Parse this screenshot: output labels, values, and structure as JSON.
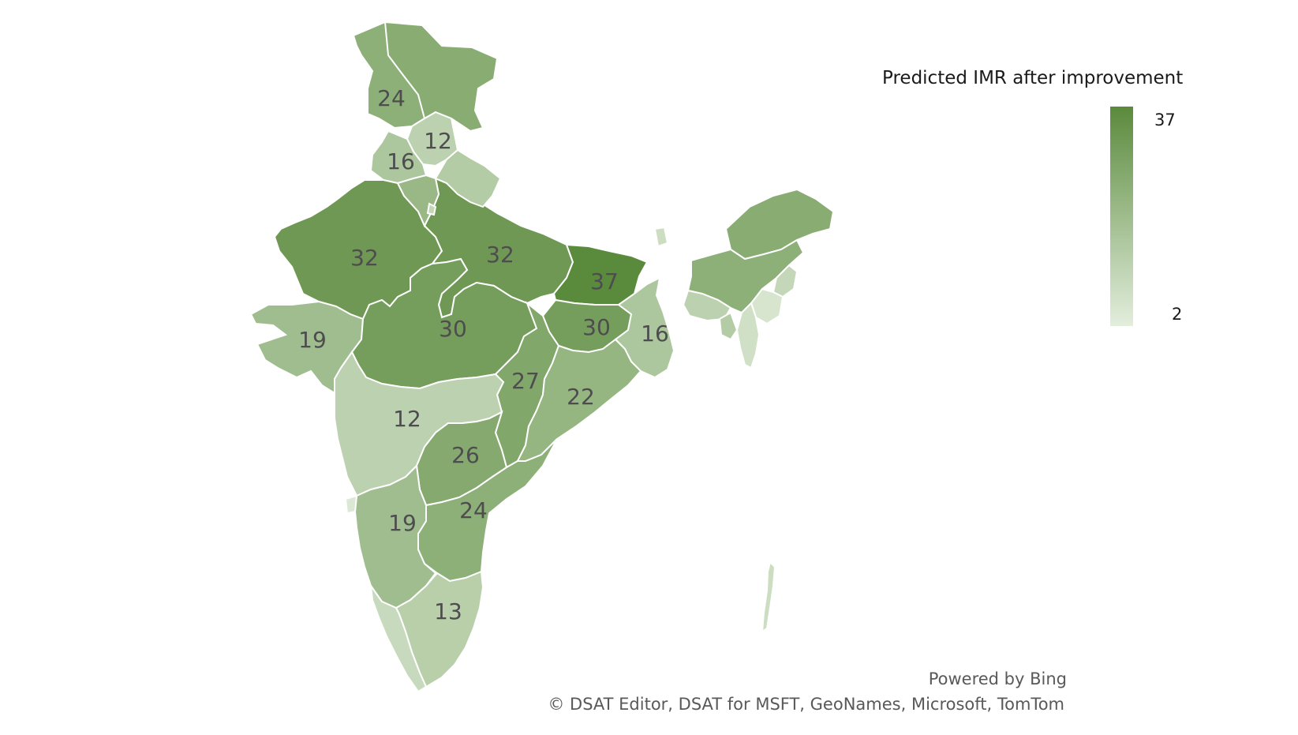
{
  "legend": {
    "title": "Predicted IMR after improvement",
    "max": 37,
    "min": 2,
    "max_label": "37",
    "min_label": "2",
    "color_low": "#e3eedd",
    "color_high": "#5a8a3c"
  },
  "regions": [
    {
      "value": 24,
      "label": "24"
    },
    {
      "value": 12,
      "label": "12"
    },
    {
      "value": 16,
      "label": "16"
    },
    {
      "value": 32,
      "label": "32"
    },
    {
      "value": 32,
      "label": "32"
    },
    {
      "value": 37,
      "label": "37"
    },
    {
      "value": 19,
      "label": "19"
    },
    {
      "value": 30,
      "label": "30"
    },
    {
      "value": 30,
      "label": "30"
    },
    {
      "value": 16,
      "label": "16"
    },
    {
      "value": 27,
      "label": "27"
    },
    {
      "value": 22,
      "label": "22"
    },
    {
      "value": 12,
      "label": "12"
    },
    {
      "value": 26,
      "label": "26"
    },
    {
      "value": 24,
      "label": "24"
    },
    {
      "value": 19,
      "label": "19"
    },
    {
      "value": 13,
      "label": "13"
    }
  ],
  "unlabeled_regions": [
    {
      "value": 25
    },
    {
      "value": 14
    },
    {
      "value": 21
    },
    {
      "value": 10
    },
    {
      "value": 8
    },
    {
      "value": 25
    },
    {
      "value": 24
    },
    {
      "value": 12
    },
    {
      "value": 10
    },
    {
      "value": 5
    },
    {
      "value": 7
    },
    {
      "value": 14
    },
    {
      "value": 4
    },
    {
      "value": 9
    },
    {
      "value": 8
    }
  ],
  "credits": {
    "powered_by": "Powered by Bing",
    "copyright": "© DSAT Editor, DSAT for MSFT, GeoNames, Microsoft, TomTom"
  }
}
